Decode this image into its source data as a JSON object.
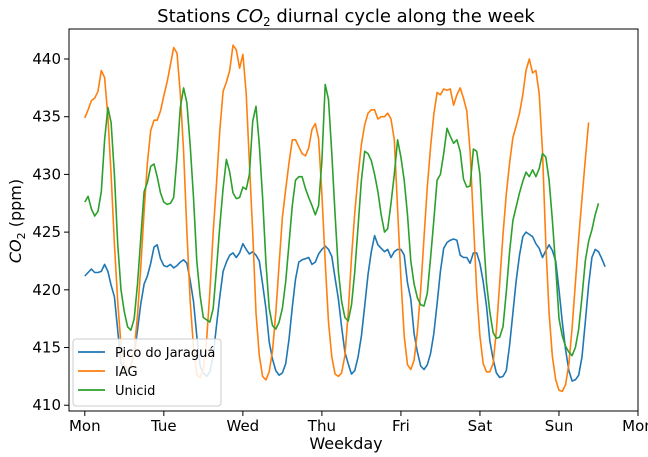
{
  "chart_data": {
    "type": "line",
    "title_prefix": "Stations ",
    "title_sub_base": "CO",
    "title_sub_index": "2",
    "title_suffix": " diurnal cycle along the week",
    "xlabel": "Weekday",
    "ylabel_base": "CO",
    "ylabel_index": "2",
    "ylabel_unit": " (ppm)",
    "x_ticks": [
      {
        "x": 0,
        "label": "Mon"
      },
      {
        "x": 1,
        "label": "Tue"
      },
      {
        "x": 2,
        "label": "Wed"
      },
      {
        "x": 3,
        "label": "Thu"
      },
      {
        "x": 4,
        "label": "Fri"
      },
      {
        "x": 5,
        "label": "Sat"
      },
      {
        "x": 6,
        "label": "Sun"
      },
      {
        "x": 7,
        "label": "Mon"
      }
    ],
    "xlim": [
      -0.2,
      7.0
    ],
    "y_ticks": [
      410,
      415,
      420,
      425,
      430,
      435,
      440
    ],
    "ylim": [
      409.5,
      442.6
    ],
    "x_unit": "days from Monday 00:00, hourly samples",
    "legend": {
      "location": "lower-left"
    },
    "series": [
      {
        "name": "Pico do Jaraguá",
        "color": "#1f77b4",
        "values": [
          421.2,
          421.5,
          421.8,
          421.5,
          421.5,
          421.6,
          422.2,
          421.6,
          420.4,
          419.4,
          416.5,
          413.6,
          413.2,
          413.0,
          413.5,
          414.4,
          416.5,
          418.8,
          420.5,
          421.2,
          422.3,
          423.7,
          423.9,
          422.7,
          422.1,
          422.0,
          422.2,
          421.9,
          422.1,
          422.4,
          422.6,
          422.3,
          420.8,
          419.0,
          416.0,
          413.4,
          412.8,
          412.5,
          412.9,
          414.3,
          416.9,
          419.4,
          421.6,
          422.4,
          423.0,
          423.2,
          422.8,
          423.2,
          424.0,
          423.5,
          423.1,
          423.3,
          423.0,
          422.5,
          420.5,
          418.4,
          415.5,
          414.0,
          413.0,
          412.6,
          412.8,
          413.6,
          415.7,
          418.5,
          420.9,
          422.4,
          422.6,
          422.7,
          422.8,
          422.2,
          422.4,
          423.1,
          423.5,
          423.8,
          423.5,
          422.9,
          421.0,
          419.2,
          416.8,
          414.6,
          413.6,
          412.7,
          413.0,
          414.2,
          416.0,
          418.6,
          421.3,
          423.3,
          424.7,
          423.9,
          423.6,
          423.3,
          423.5,
          422.8,
          423.3,
          423.5,
          423.5,
          423.0,
          420.6,
          419.2,
          416.2,
          414.6,
          413.4,
          413.1,
          413.5,
          414.5,
          416.2,
          418.8,
          421.6,
          423.6,
          424.1,
          424.3,
          424.4,
          424.3,
          423.0,
          422.8,
          422.8,
          422.3,
          423.2,
          423.2,
          422.3,
          420.7,
          418.6,
          415.6,
          414.0,
          412.8,
          412.4,
          412.5,
          413.0,
          415.2,
          418.0,
          420.8,
          423.0,
          424.6,
          425.0,
          424.8,
          424.6,
          424.0,
          423.6,
          422.8,
          423.4,
          423.9,
          423.4,
          422.5,
          420.0,
          417.2,
          414.8,
          413.0,
          412.1,
          412.2,
          412.6,
          414.2,
          417.2,
          420.4,
          422.8,
          423.5,
          423.3,
          422.7,
          422.0
        ]
      },
      {
        "name": "IAG",
        "color": "#ff7f0e",
        "values": [
          434.9,
          435.6,
          436.4,
          436.6,
          437.2,
          439.0,
          438.4,
          435.0,
          430.0,
          424.0,
          419.0,
          415.2,
          413.5,
          413.0,
          413.4,
          414.7,
          417.8,
          422.0,
          426.8,
          431.0,
          433.8,
          434.7,
          434.7,
          435.5,
          436.8,
          438.0,
          439.5,
          441.0,
          440.5,
          437.0,
          432.0,
          425.0,
          419.0,
          415.0,
          412.6,
          412.4,
          413.1,
          415.6,
          419.9,
          425.0,
          429.2,
          433.8,
          437.2,
          438.0,
          439.0,
          441.2,
          440.8,
          439.2,
          440.4,
          437.0,
          431.0,
          425.0,
          418.0,
          414.3,
          412.5,
          412.2,
          412.9,
          414.7,
          418.0,
          422.2,
          426.3,
          428.7,
          431.0,
          433.0,
          433.0,
          432.4,
          431.8,
          431.6,
          432.3,
          433.9,
          434.4,
          433.1,
          428.3,
          422.4,
          417.2,
          414.2,
          412.7,
          412.5,
          412.8,
          414.3,
          418.0,
          422.8,
          426.7,
          429.9,
          432.6,
          434.3,
          435.3,
          435.6,
          435.6,
          434.8,
          435.0,
          435.0,
          435.3,
          434.8,
          433.0,
          427.0,
          421.0,
          416.0,
          413.5,
          413.1,
          413.9,
          416.4,
          420.0,
          424.5,
          428.9,
          432.4,
          435.2,
          437.1,
          436.9,
          437.4,
          437.3,
          437.4,
          436.0,
          436.9,
          437.5,
          436.6,
          435.5,
          432.0,
          426.0,
          419.9,
          416.0,
          413.6,
          412.9,
          412.9,
          413.6,
          416.5,
          420.6,
          424.8,
          428.3,
          431.0,
          433.2,
          434.2,
          435.3,
          436.9,
          439.0,
          440.0,
          438.8,
          439.0,
          437.0,
          432.0,
          424.0,
          418.0,
          414.2,
          412.2,
          411.3,
          411.2,
          411.8,
          413.6,
          416.7,
          420.6,
          424.5,
          427.9,
          431.3,
          434.5
        ]
      },
      {
        "name": "Unicid",
        "color": "#2ca02c",
        "values": [
          427.6,
          428.1,
          427.0,
          426.4,
          426.8,
          428.5,
          433.0,
          435.8,
          434.5,
          430.0,
          424.0,
          420.0,
          418.1,
          416.8,
          416.5,
          417.5,
          420.5,
          424.5,
          428.5,
          429.3,
          430.7,
          430.9,
          429.8,
          428.4,
          427.6,
          427.4,
          427.5,
          428.0,
          431.5,
          435.8,
          437.5,
          436.2,
          432.5,
          428.0,
          422.5,
          419.5,
          417.6,
          417.4,
          417.2,
          418.4,
          421.8,
          425.5,
          428.8,
          431.3,
          430.2,
          428.4,
          427.9,
          428.0,
          428.9,
          428.7,
          430.0,
          434.6,
          435.9,
          432.6,
          428.0,
          422.4,
          418.4,
          416.9,
          416.6,
          417.2,
          418.4,
          420.7,
          424.0,
          427.3,
          429.5,
          429.8,
          429.8,
          428.8,
          428.0,
          427.3,
          426.5,
          427.3,
          431.2,
          437.8,
          436.5,
          431.8,
          426.5,
          421.6,
          419.0,
          417.6,
          417.3,
          418.7,
          421.6,
          425.5,
          429.5,
          432.0,
          431.8,
          431.2,
          430.0,
          428.5,
          426.5,
          425.0,
          425.3,
          427.5,
          430.0,
          433.0,
          431.5,
          429.5,
          426.5,
          422.5,
          420.5,
          419.3,
          418.7,
          418.6,
          419.7,
          422.8,
          426.0,
          429.5,
          430.0,
          431.8,
          434.0,
          433.3,
          432.7,
          433.0,
          432.0,
          429.6,
          428.9,
          429.0,
          432.2,
          432.0,
          430.0,
          425.0,
          420.6,
          418.1,
          416.3,
          415.8,
          415.9,
          416.8,
          419.8,
          423.3,
          426.0,
          427.2,
          428.4,
          429.4,
          430.2,
          429.8,
          430.4,
          429.8,
          430.5,
          431.8,
          431.5,
          429.5,
          426.0,
          422.0,
          417.5,
          416.0,
          415.1,
          414.6,
          414.3,
          415.0,
          416.6,
          419.4,
          422.5,
          424.2,
          425.2,
          426.5,
          427.5
        ]
      }
    ]
  }
}
